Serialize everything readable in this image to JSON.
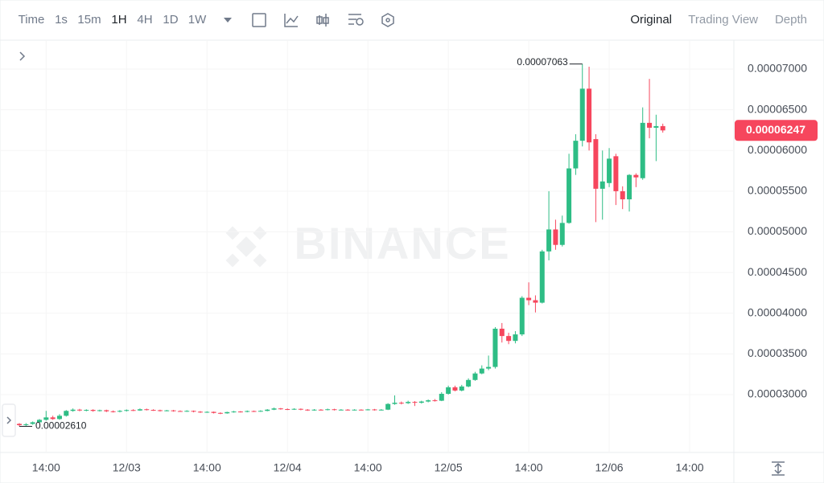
{
  "toolbar": {
    "intervals": [
      "Time",
      "1s",
      "15m",
      "1H",
      "4H",
      "1D",
      "1W"
    ],
    "views": [
      "Original",
      "Trading View",
      "Depth"
    ]
  },
  "chart_data": {
    "type": "candlestick",
    "watermark": "BINANCE",
    "x": [
      0,
      1,
      2,
      3,
      4,
      5,
      6,
      7,
      8,
      9,
      10,
      11,
      12,
      13,
      14,
      15,
      16,
      17,
      18,
      19,
      20,
      21,
      22,
      23,
      24,
      25,
      26,
      27,
      28,
      29,
      30,
      31,
      32,
      33,
      34,
      35,
      36,
      37,
      38,
      39,
      40,
      41,
      42,
      43,
      44,
      45,
      46,
      47,
      48,
      49,
      50,
      51,
      52,
      53,
      54,
      55,
      56,
      57,
      58,
      59,
      60,
      61,
      62,
      63,
      64,
      65,
      66,
      67,
      68,
      69,
      70,
      71,
      72,
      73,
      74,
      75,
      76,
      77,
      78,
      79,
      80,
      81,
      82,
      83,
      84,
      85,
      86,
      87,
      88,
      89,
      90,
      91,
      92,
      93,
      94,
      95,
      96
    ],
    "open": [
      2.64e-05,
      2.625e-05,
      2.64e-05,
      2.66e-05,
      2.69e-05,
      2.72e-05,
      2.7e-05,
      2.74e-05,
      2.8e-05,
      2.815e-05,
      2.805e-05,
      2.812e-05,
      2.8e-05,
      2.808e-05,
      2.795e-05,
      2.79e-05,
      2.8e-05,
      2.81e-05,
      2.805e-05,
      2.82e-05,
      2.812e-05,
      2.808e-05,
      2.8e-05,
      2.806e-05,
      2.798e-05,
      2.795e-05,
      2.8e-05,
      2.79e-05,
      2.782e-05,
      2.788e-05,
      2.775e-05,
      2.77e-05,
      2.785e-05,
      2.792e-05,
      2.788e-05,
      2.798e-05,
      2.792e-05,
      2.8e-05,
      2.815e-05,
      2.83e-05,
      2.822e-05,
      2.818e-05,
      2.825e-05,
      2.815e-05,
      2.808e-05,
      2.815e-05,
      2.812e-05,
      2.82e-05,
      2.812e-05,
      2.815e-05,
      2.81e-05,
      2.815e-05,
      2.812e-05,
      2.818e-05,
      2.81e-05,
      2.815e-05,
      2.885e-05,
      2.9e-05,
      2.895e-05,
      2.91e-05,
      2.9e-05,
      2.915e-05,
      2.93e-05,
      2.925e-05,
      3.01e-05,
      3.09e-05,
      3.05e-05,
      3.1e-05,
      3.18e-05,
      3.26e-05,
      3.32e-05,
      3.34e-05,
      3.81e-05,
      3.72e-05,
      3.66e-05,
      3.74e-05,
      4.19e-05,
      4.16e-05,
      4.13e-05,
      4.76e-05,
      5.03e-05,
      4.84e-05,
      5.11e-05,
      5.78e-05,
      6.12e-05,
      6.76e-05,
      6.14e-05,
      5.53e-05,
      5.6e-05,
      5.93e-05,
      5.5e-05,
      5.4e-05,
      5.7e-05,
      5.66e-05,
      6.34e-05,
      6.28e-05,
      6.3e-05
    ],
    "high": [
      2.65e-05,
      2.65e-05,
      2.67e-05,
      2.7e-05,
      2.8e-05,
      2.74e-05,
      2.76e-05,
      2.81e-05,
      2.83e-05,
      2.825e-05,
      2.82e-05,
      2.82e-05,
      2.815e-05,
      2.815e-05,
      2.805e-05,
      2.81e-05,
      2.818e-05,
      2.82e-05,
      2.83e-05,
      2.828e-05,
      2.82e-05,
      2.815e-05,
      2.812e-05,
      2.812e-05,
      2.806e-05,
      2.808e-05,
      2.805e-05,
      2.798e-05,
      2.795e-05,
      2.792e-05,
      2.782e-05,
      2.79e-05,
      2.8e-05,
      2.798e-05,
      2.805e-05,
      2.804e-05,
      2.808e-05,
      2.822e-05,
      2.84e-05,
      2.836e-05,
      2.83e-05,
      2.832e-05,
      2.83e-05,
      2.822e-05,
      2.822e-05,
      2.822e-05,
      2.828e-05,
      2.826e-05,
      2.822e-05,
      2.822e-05,
      2.82e-05,
      2.82e-05,
      2.824e-05,
      2.824e-05,
      2.822e-05,
      2.895e-05,
      2.99e-05,
      2.915e-05,
      2.925e-05,
      2.92e-05,
      2.925e-05,
      2.94e-05,
      2.945e-05,
      3.03e-05,
      3.11e-05,
      3.11e-05,
      3.12e-05,
      3.2e-05,
      3.28e-05,
      3.36e-05,
      3.48e-05,
      3.83e-05,
      3.88e-05,
      3.76e-05,
      3.78e-05,
      4.21e-05,
      4.38e-05,
      4.22e-05,
      4.78e-05,
      5.5e-05,
      5.15e-05,
      5.2e-05,
      5.96e-05,
      6.2e-05,
      7.063e-05,
      7.03e-05,
      6.2e-05,
      6e-05,
      6.03e-05,
      5.96e-05,
      5.56e-05,
      5.71e-05,
      5.72e-05,
      6.53e-05,
      6.88e-05,
      6.44e-05,
      6.33e-05
    ],
    "low": [
      2.61e-05,
      2.615e-05,
      2.63e-05,
      2.65e-05,
      2.68e-05,
      2.69e-05,
      2.69e-05,
      2.73e-05,
      2.79e-05,
      2.795e-05,
      2.795e-05,
      2.79e-05,
      2.792e-05,
      2.785e-05,
      2.78e-05,
      2.782e-05,
      2.792e-05,
      2.798e-05,
      2.8e-05,
      2.805e-05,
      2.8e-05,
      2.792e-05,
      2.795e-05,
      2.79e-05,
      2.788e-05,
      2.788e-05,
      2.782e-05,
      2.775e-05,
      2.776e-05,
      2.768e-05,
      2.76e-05,
      2.765e-05,
      2.778e-05,
      2.78e-05,
      2.782e-05,
      2.786e-05,
      2.788e-05,
      2.795e-05,
      2.81e-05,
      2.815e-05,
      2.81e-05,
      2.812e-05,
      2.808e-05,
      2.8e-05,
      2.802e-05,
      2.805e-05,
      2.806e-05,
      2.805e-05,
      2.806e-05,
      2.804e-05,
      2.805e-05,
      2.806e-05,
      2.806e-05,
      2.804e-05,
      2.805e-05,
      2.81e-05,
      2.875e-05,
      2.88e-05,
      2.885e-05,
      2.86e-05,
      2.89e-05,
      2.905e-05,
      2.915e-05,
      2.92e-05,
      3e-05,
      3.04e-05,
      3.04e-05,
      3.09e-05,
      3.17e-05,
      3.25e-05,
      3.3e-05,
      3.32e-05,
      3.64e-05,
      3.62e-05,
      3.63e-05,
      3.72e-05,
      4.1e-05,
      4.01e-05,
      4.12e-05,
      4.65e-05,
      4.78e-05,
      4.82e-05,
      5.1e-05,
      5.7e-05,
      6.05e-05,
      6e-05,
      5.12e-05,
      5.15e-05,
      5.55e-05,
      5.33e-05,
      5.28e-05,
      5.25e-05,
      5.55e-05,
      5.64e-05,
      6.15e-05,
      5.87e-05,
      6.22e-05
    ],
    "close": [
      2.625e-05,
      2.635e-05,
      2.66e-05,
      2.69e-05,
      2.72e-05,
      2.7e-05,
      2.74e-05,
      2.8e-05,
      2.815e-05,
      2.805e-05,
      2.812e-05,
      2.8e-05,
      2.808e-05,
      2.795e-05,
      2.79e-05,
      2.8e-05,
      2.81e-05,
      2.805e-05,
      2.82e-05,
      2.812e-05,
      2.808e-05,
      2.8e-05,
      2.806e-05,
      2.798e-05,
      2.795e-05,
      2.8e-05,
      2.79e-05,
      2.782e-05,
      2.788e-05,
      2.775e-05,
      2.77e-05,
      2.785e-05,
      2.792e-05,
      2.788e-05,
      2.798e-05,
      2.792e-05,
      2.8e-05,
      2.815e-05,
      2.83e-05,
      2.822e-05,
      2.818e-05,
      2.825e-05,
      2.815e-05,
      2.808e-05,
      2.815e-05,
      2.812e-05,
      2.82e-05,
      2.812e-05,
      2.815e-05,
      2.81e-05,
      2.815e-05,
      2.812e-05,
      2.818e-05,
      2.81e-05,
      2.815e-05,
      2.885e-05,
      2.9e-05,
      2.895e-05,
      2.91e-05,
      2.9e-05,
      2.915e-05,
      2.93e-05,
      2.925e-05,
      3.01e-05,
      3.09e-05,
      3.05e-05,
      3.1e-05,
      3.18e-05,
      3.26e-05,
      3.32e-05,
      3.34e-05,
      3.81e-05,
      3.72e-05,
      3.66e-05,
      3.74e-05,
      4.19e-05,
      4.16e-05,
      4.13e-05,
      4.76e-05,
      5.03e-05,
      4.84e-05,
      5.11e-05,
      5.78e-05,
      6.12e-05,
      6.76e-05,
      6.1e-05,
      5.53e-05,
      5.62e-05,
      5.9e-05,
      5.5e-05,
      5.4e-05,
      5.7e-05,
      5.67e-05,
      6.34e-05,
      6.28e-05,
      6.3e-05,
      6.247e-05
    ],
    "up_color": "#2ebd85",
    "down_color": "#f6465d",
    "xlim": [
      -2.88,
      106.6
    ],
    "xticks": [
      {
        "value": 4,
        "label": "14:00"
      },
      {
        "value": 16,
        "label": "12/03"
      },
      {
        "value": 28,
        "label": "14:00"
      },
      {
        "value": 40,
        "label": "12/04"
      },
      {
        "value": 52,
        "label": "14:00"
      },
      {
        "value": 64,
        "label": "12/05"
      },
      {
        "value": 76,
        "label": "14:00"
      },
      {
        "value": 88,
        "label": "12/06"
      },
      {
        "value": 100,
        "label": "14:00"
      }
    ],
    "ylim": [
      2.289e-05,
      7.356e-05
    ],
    "yticks": [
      {
        "value": 3e-05,
        "label": "0.00003000"
      },
      {
        "value": 3.5e-05,
        "label": "0.00003500"
      },
      {
        "value": 4e-05,
        "label": "0.00004000"
      },
      {
        "value": 4.5e-05,
        "label": "0.00004500"
      },
      {
        "value": 5e-05,
        "label": "0.00005000"
      },
      {
        "value": 5.5e-05,
        "label": "0.00005500"
      },
      {
        "value": 6e-05,
        "label": "0.00006000"
      },
      {
        "value": 6.5e-05,
        "label": "0.00006500"
      },
      {
        "value": 7e-05,
        "label": "0.00007000"
      }
    ],
    "grid": true,
    "annotations": [
      {
        "text": "0.00007063",
        "value": 7.063e-05
      },
      {
        "text": "0.00002610",
        "value": 2.61e-05
      }
    ],
    "last_price": {
      "value": 6.247e-05,
      "label": "0.00006247"
    }
  }
}
